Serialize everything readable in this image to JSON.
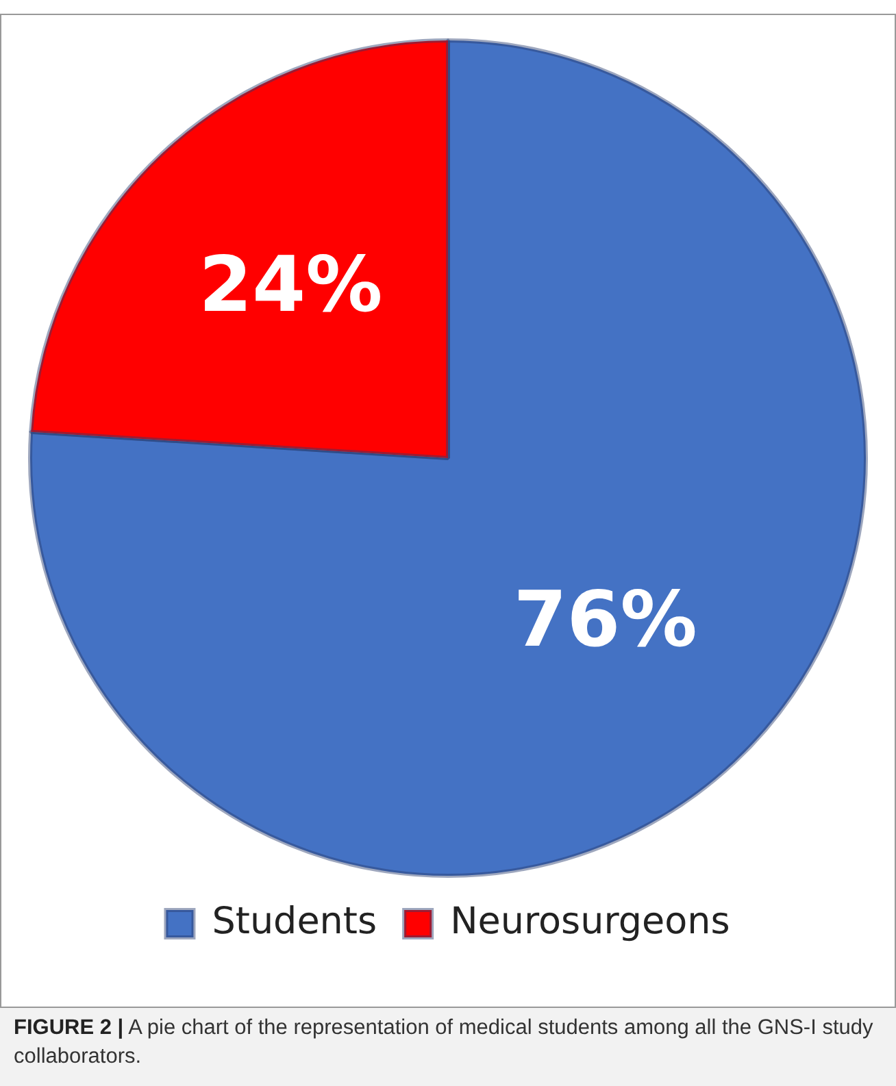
{
  "chart_data": {
    "type": "pie",
    "categories": [
      "Students",
      "Neurosurgeons"
    ],
    "values": [
      76,
      24
    ],
    "colors": [
      "#4472c4",
      "#ff0000"
    ],
    "value_labels": [
      "76%",
      "24%"
    ],
    "legend": "bottom",
    "annotations": [
      "FIGURE 2 | A pie chart of the representation of medical students among all the GNS-I study collaborators."
    ]
  }
}
